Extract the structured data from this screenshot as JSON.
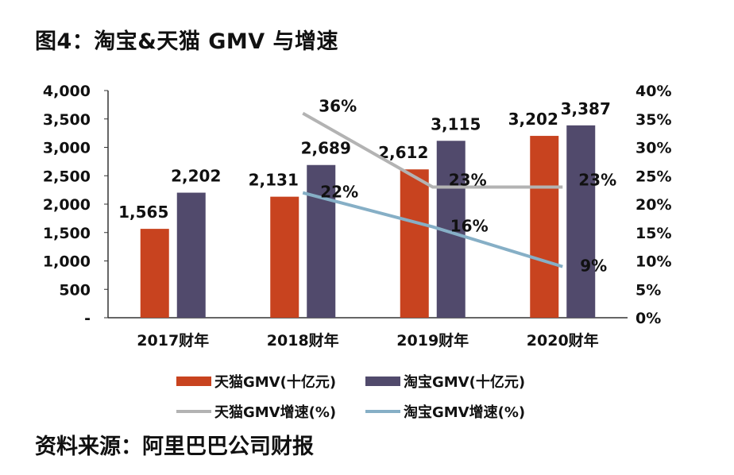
{
  "title": "图4：淘宝&天猫 GMV 与增速",
  "source": "资料来源：阿里巴巴公司财报",
  "chart_data": {
    "type": "bar",
    "title": "图4：淘宝&天猫 GMV 与增速",
    "categories": [
      "2017财年",
      "2018财年",
      "2019财年",
      "2020财年"
    ],
    "y_left": {
      "ylim": [
        0,
        4000
      ],
      "ticks": [
        "-",
        "500",
        "1,000",
        "1,500",
        "2,000",
        "2,500",
        "3,000",
        "3,500",
        "4,000"
      ]
    },
    "y_right": {
      "ylim": [
        0,
        40
      ],
      "ticks": [
        "0%",
        "5%",
        "10%",
        "15%",
        "20%",
        "25%",
        "30%",
        "35%",
        "40%"
      ]
    },
    "grid": false,
    "legend_position": "bottom",
    "series": [
      {
        "name": "天猫GMV(十亿元)",
        "kind": "bar",
        "axis": "left",
        "color": "#c8431f",
        "values": [
          1565,
          2131,
          2612,
          3202
        ],
        "labels": [
          "1,565",
          "2,131",
          "2,612",
          "3,202"
        ]
      },
      {
        "name": "淘宝GMV(十亿元)",
        "kind": "bar",
        "axis": "left",
        "color": "#514a6c",
        "values": [
          2202,
          2689,
          3115,
          3387
        ],
        "labels": [
          "2,202",
          "2,689",
          "3,115",
          "3,387"
        ]
      },
      {
        "name": "天猫GMV增速(%)",
        "kind": "line",
        "axis": "right",
        "color": "#b3b3b3",
        "values": [
          null,
          36,
          23,
          23
        ],
        "labels": [
          null,
          "36%",
          "23%",
          "23%"
        ]
      },
      {
        "name": "淘宝GMV增速(%)",
        "kind": "line",
        "axis": "right",
        "color": "#86afc6",
        "values": [
          null,
          22,
          16,
          9
        ],
        "labels": [
          null,
          "22%",
          "16%",
          "9%"
        ]
      }
    ]
  }
}
